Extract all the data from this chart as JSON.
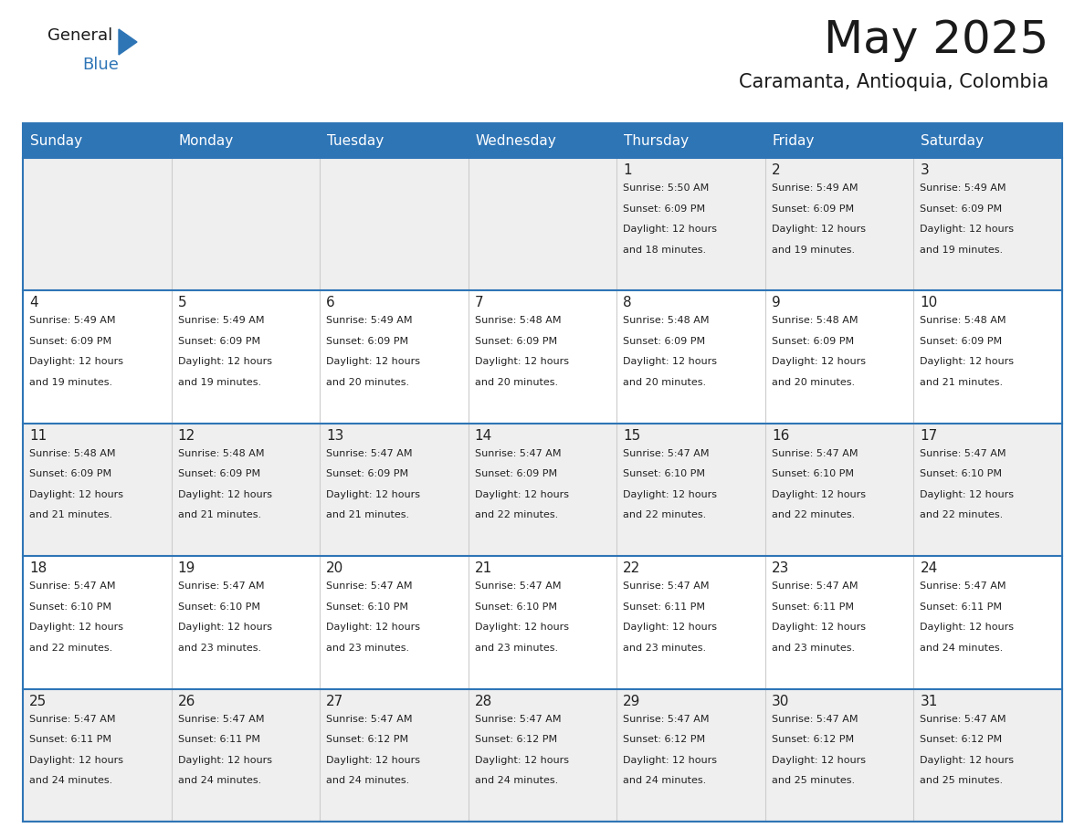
{
  "title": "May 2025",
  "subtitle": "Caramanta, Antioquia, Colombia",
  "header_bg": "#2E75B6",
  "header_text_color": "#FFFFFF",
  "day_names": [
    "Sunday",
    "Monday",
    "Tuesday",
    "Wednesday",
    "Thursday",
    "Friday",
    "Saturday"
  ],
  "cell_bg_light": "#EFEFEF",
  "cell_bg_white": "#FFFFFF",
  "cell_border_color": "#2E75B6",
  "cell_inner_border": "#CCCCCC",
  "days": [
    {
      "day": null,
      "col": 0,
      "row": 0
    },
    {
      "day": null,
      "col": 1,
      "row": 0
    },
    {
      "day": null,
      "col": 2,
      "row": 0
    },
    {
      "day": null,
      "col": 3,
      "row": 0
    },
    {
      "day": 1,
      "col": 4,
      "row": 0,
      "sunrise": "5:50 AM",
      "sunset": "6:09 PM",
      "daylight": "12 hours and 18 minutes."
    },
    {
      "day": 2,
      "col": 5,
      "row": 0,
      "sunrise": "5:49 AM",
      "sunset": "6:09 PM",
      "daylight": "12 hours and 19 minutes."
    },
    {
      "day": 3,
      "col": 6,
      "row": 0,
      "sunrise": "5:49 AM",
      "sunset": "6:09 PM",
      "daylight": "12 hours and 19 minutes."
    },
    {
      "day": 4,
      "col": 0,
      "row": 1,
      "sunrise": "5:49 AM",
      "sunset": "6:09 PM",
      "daylight": "12 hours and 19 minutes."
    },
    {
      "day": 5,
      "col": 1,
      "row": 1,
      "sunrise": "5:49 AM",
      "sunset": "6:09 PM",
      "daylight": "12 hours and 19 minutes."
    },
    {
      "day": 6,
      "col": 2,
      "row": 1,
      "sunrise": "5:49 AM",
      "sunset": "6:09 PM",
      "daylight": "12 hours and 20 minutes."
    },
    {
      "day": 7,
      "col": 3,
      "row": 1,
      "sunrise": "5:48 AM",
      "sunset": "6:09 PM",
      "daylight": "12 hours and 20 minutes."
    },
    {
      "day": 8,
      "col": 4,
      "row": 1,
      "sunrise": "5:48 AM",
      "sunset": "6:09 PM",
      "daylight": "12 hours and 20 minutes."
    },
    {
      "day": 9,
      "col": 5,
      "row": 1,
      "sunrise": "5:48 AM",
      "sunset": "6:09 PM",
      "daylight": "12 hours and 20 minutes."
    },
    {
      "day": 10,
      "col": 6,
      "row": 1,
      "sunrise": "5:48 AM",
      "sunset": "6:09 PM",
      "daylight": "12 hours and 21 minutes."
    },
    {
      "day": 11,
      "col": 0,
      "row": 2,
      "sunrise": "5:48 AM",
      "sunset": "6:09 PM",
      "daylight": "12 hours and 21 minutes."
    },
    {
      "day": 12,
      "col": 1,
      "row": 2,
      "sunrise": "5:48 AM",
      "sunset": "6:09 PM",
      "daylight": "12 hours and 21 minutes."
    },
    {
      "day": 13,
      "col": 2,
      "row": 2,
      "sunrise": "5:47 AM",
      "sunset": "6:09 PM",
      "daylight": "12 hours and 21 minutes."
    },
    {
      "day": 14,
      "col": 3,
      "row": 2,
      "sunrise": "5:47 AM",
      "sunset": "6:09 PM",
      "daylight": "12 hours and 22 minutes."
    },
    {
      "day": 15,
      "col": 4,
      "row": 2,
      "sunrise": "5:47 AM",
      "sunset": "6:10 PM",
      "daylight": "12 hours and 22 minutes."
    },
    {
      "day": 16,
      "col": 5,
      "row": 2,
      "sunrise": "5:47 AM",
      "sunset": "6:10 PM",
      "daylight": "12 hours and 22 minutes."
    },
    {
      "day": 17,
      "col": 6,
      "row": 2,
      "sunrise": "5:47 AM",
      "sunset": "6:10 PM",
      "daylight": "12 hours and 22 minutes."
    },
    {
      "day": 18,
      "col": 0,
      "row": 3,
      "sunrise": "5:47 AM",
      "sunset": "6:10 PM",
      "daylight": "12 hours and 22 minutes."
    },
    {
      "day": 19,
      "col": 1,
      "row": 3,
      "sunrise": "5:47 AM",
      "sunset": "6:10 PM",
      "daylight": "12 hours and 23 minutes."
    },
    {
      "day": 20,
      "col": 2,
      "row": 3,
      "sunrise": "5:47 AM",
      "sunset": "6:10 PM",
      "daylight": "12 hours and 23 minutes."
    },
    {
      "day": 21,
      "col": 3,
      "row": 3,
      "sunrise": "5:47 AM",
      "sunset": "6:10 PM",
      "daylight": "12 hours and 23 minutes."
    },
    {
      "day": 22,
      "col": 4,
      "row": 3,
      "sunrise": "5:47 AM",
      "sunset": "6:11 PM",
      "daylight": "12 hours and 23 minutes."
    },
    {
      "day": 23,
      "col": 5,
      "row": 3,
      "sunrise": "5:47 AM",
      "sunset": "6:11 PM",
      "daylight": "12 hours and 23 minutes."
    },
    {
      "day": 24,
      "col": 6,
      "row": 3,
      "sunrise": "5:47 AM",
      "sunset": "6:11 PM",
      "daylight": "12 hours and 24 minutes."
    },
    {
      "day": 25,
      "col": 0,
      "row": 4,
      "sunrise": "5:47 AM",
      "sunset": "6:11 PM",
      "daylight": "12 hours and 24 minutes."
    },
    {
      "day": 26,
      "col": 1,
      "row": 4,
      "sunrise": "5:47 AM",
      "sunset": "6:11 PM",
      "daylight": "12 hours and 24 minutes."
    },
    {
      "day": 27,
      "col": 2,
      "row": 4,
      "sunrise": "5:47 AM",
      "sunset": "6:12 PM",
      "daylight": "12 hours and 24 minutes."
    },
    {
      "day": 28,
      "col": 3,
      "row": 4,
      "sunrise": "5:47 AM",
      "sunset": "6:12 PM",
      "daylight": "12 hours and 24 minutes."
    },
    {
      "day": 29,
      "col": 4,
      "row": 4,
      "sunrise": "5:47 AM",
      "sunset": "6:12 PM",
      "daylight": "12 hours and 24 minutes."
    },
    {
      "day": 30,
      "col": 5,
      "row": 4,
      "sunrise": "5:47 AM",
      "sunset": "6:12 PM",
      "daylight": "12 hours and 25 minutes."
    },
    {
      "day": 31,
      "col": 6,
      "row": 4,
      "sunrise": "5:47 AM",
      "sunset": "6:12 PM",
      "daylight": "12 hours and 25 minutes."
    }
  ],
  "logo_text1": "General",
  "logo_text2": "Blue",
  "logo_color1": "#1A1A1A",
  "logo_color2": "#2E75B6",
  "logo_triangle_color": "#2E75B6",
  "title_fontsize": 36,
  "subtitle_fontsize": 15,
  "day_name_fontsize": 11,
  "day_num_fontsize": 11,
  "info_fontsize": 8
}
